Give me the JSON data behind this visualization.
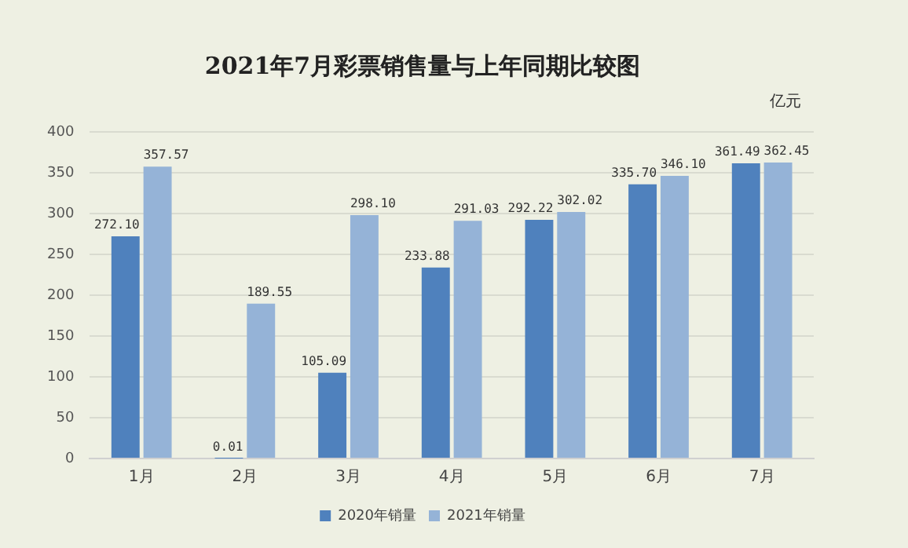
{
  "chart_data": {
    "type": "bar",
    "title": "2021年7月彩票销售量与上年同期比较图",
    "categories": [
      "1月",
      "2月",
      "3月",
      "4月",
      "5月",
      "6月",
      "7月"
    ],
    "series": [
      {
        "name": "2020年销量",
        "color": "#4f81bd",
        "values": [
          272.1,
          0.01,
          105.09,
          233.88,
          292.22,
          335.7,
          361.49
        ],
        "value_labels": [
          "272.10",
          "0.01",
          "105.09",
          "233.88",
          "292.22",
          "335.70",
          "361.49"
        ]
      },
      {
        "name": "2021年销量",
        "color": "#95b3d7",
        "values": [
          357.57,
          189.55,
          298.1,
          291.03,
          302.02,
          346.1,
          362.45
        ],
        "value_labels": [
          "357.57",
          "189.55",
          "298.10",
          "291.03",
          "302.02",
          "346.10",
          "362.45"
        ]
      }
    ],
    "ylim": [
      0,
      400
    ],
    "yticks": [
      0,
      50,
      100,
      150,
      200,
      250,
      300,
      350,
      400
    ],
    "grid": "y",
    "legend": "bottom",
    "annotations": [
      "亿元"
    ]
  }
}
